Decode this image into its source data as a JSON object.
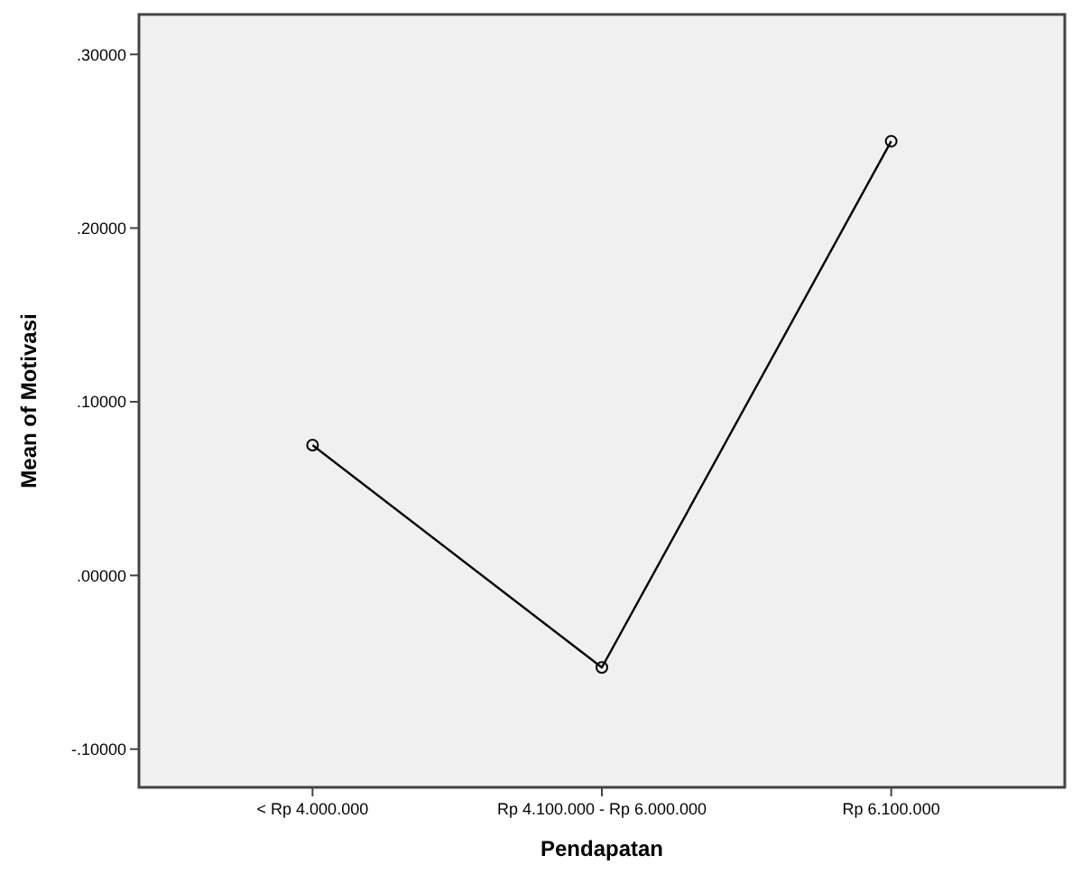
{
  "chart_data": {
    "type": "line",
    "xlabel": "Pendapatan",
    "ylabel": "Mean of Motivasi",
    "categories": [
      "< Rp 4.000.000",
      "Rp 4.100.000 - Rp 6.000.000",
      "Rp 6.100.000"
    ],
    "series": [
      {
        "color": "#000000",
        "values": [
          0.075,
          -0.053,
          0.25
        ]
      }
    ],
    "ylim": [
      -0.122,
      0.323
    ],
    "yticks": [
      {
        "value": -0.1,
        "label": "-.10000"
      },
      {
        "value": 0,
        "label": ".00000"
      },
      {
        "value": 0.1,
        "label": ".10000"
      },
      {
        "value": 0.2,
        "label": ".20000"
      },
      {
        "value": 0.3,
        "label": ".30000"
      }
    ],
    "marker": "circle"
  }
}
